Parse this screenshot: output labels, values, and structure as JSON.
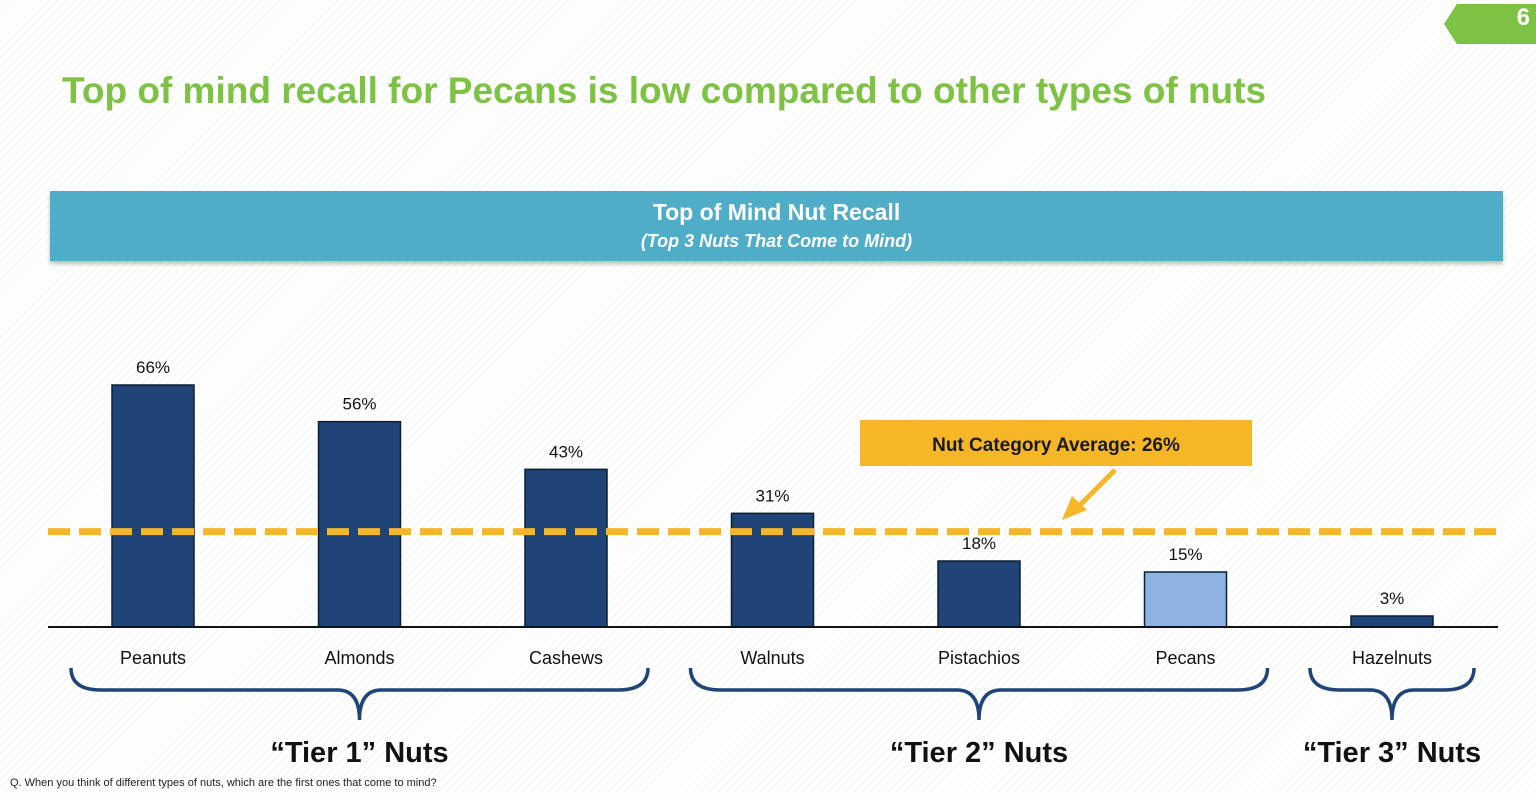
{
  "page_number": "6",
  "slide_title": "Top of mind recall for Pecans is low compared to other types of nuts",
  "chart_banner": {
    "title": "Top of Mind Nut Recall",
    "subtitle": "(Top 3 Nuts That Come to Mind)"
  },
  "chart_data": {
    "type": "bar",
    "title": "Top of Mind Nut Recall",
    "subtitle": "(Top 3 Nuts That Come to Mind)",
    "categories": [
      "Peanuts",
      "Almonds",
      "Cashews",
      "Walnuts",
      "Pistachios",
      "Pecans",
      "Hazelnuts"
    ],
    "values": [
      66,
      56,
      43,
      31,
      18,
      15,
      3
    ],
    "value_labels": [
      "66%",
      "56%",
      "43%",
      "31%",
      "18%",
      "15%",
      "3%"
    ],
    "highlight_category": "Pecans",
    "colors": {
      "bar": "#1f4478",
      "highlight_bar": "#8db3e2",
      "average_line": "#f5b628",
      "callout": "#f5b628"
    },
    "reference_line": {
      "value": 26,
      "label": "Nut Category Average: 26%",
      "style": "dashed"
    },
    "groups": [
      {
        "label": "“Tier 1” Nuts",
        "categories": [
          "Peanuts",
          "Almonds",
          "Cashews"
        ]
      },
      {
        "label": "“Tier 2” Nuts",
        "categories": [
          "Walnuts",
          "Pistachios",
          "Pecans"
        ]
      },
      {
        "label": "“Tier 3” Nuts",
        "categories": [
          "Hazelnuts"
        ]
      }
    ],
    "ylim": [
      0,
      66
    ],
    "xlabel": "",
    "ylabel": "",
    "grid": false,
    "legend": "none"
  },
  "footnote": "Q. When you think of different types of nuts, which are the first ones that come to mind?",
  "colors": {
    "title_green": "#7dc242",
    "banner_blue": "#4fadc8",
    "brace_blue": "#1f4478"
  }
}
